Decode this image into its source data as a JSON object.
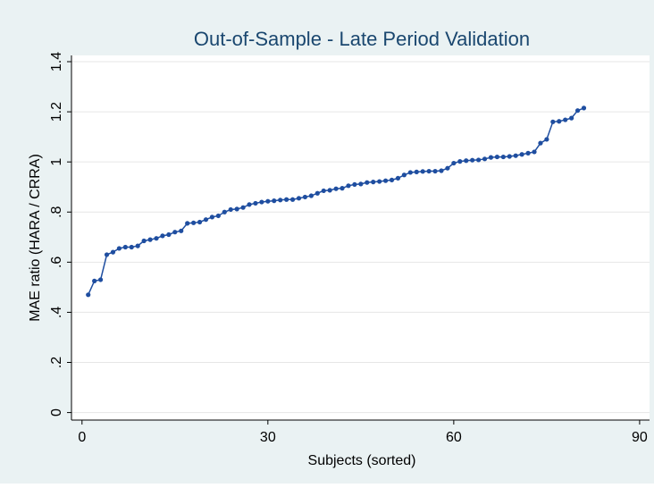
{
  "chart_data": {
    "type": "line",
    "title": "Out-of-Sample - Late Period Validation",
    "xlabel": "Subjects (sorted)",
    "ylabel": "MAE ratio (HARA / CRRA)",
    "color": "#1f4ea0",
    "grid": true,
    "xlim": [
      -1.7,
      91.6
    ],
    "xticks": [
      0,
      30,
      60,
      90
    ],
    "ylim": [
      -0.03,
      1.425
    ],
    "yticks": [
      0,
      {
        "value": 0.2,
        "label": ".2"
      },
      {
        "value": 0.4,
        "label": ".4"
      },
      {
        "value": 0.6,
        "label": ".6"
      },
      {
        "value": 0.8,
        "label": ".8"
      },
      1,
      1.2,
      1.4
    ],
    "x": [
      1,
      2,
      3,
      4,
      5,
      6,
      7,
      8,
      9,
      10,
      11,
      12,
      13,
      14,
      15,
      16,
      17,
      18,
      19,
      20,
      21,
      22,
      23,
      24,
      25,
      26,
      27,
      28,
      29,
      30,
      31,
      32,
      33,
      34,
      35,
      36,
      37,
      38,
      39,
      40,
      41,
      42,
      43,
      44,
      45,
      46,
      47,
      48,
      49,
      50,
      51,
      52,
      53,
      54,
      55,
      56,
      57,
      58,
      59,
      60,
      61,
      62,
      63,
      64,
      65,
      66,
      67,
      68,
      69,
      70,
      71,
      72,
      73,
      74,
      75,
      76,
      77,
      78,
      79,
      80,
      81
    ],
    "values": [
      0.47,
      0.525,
      0.53,
      0.63,
      0.64,
      0.655,
      0.66,
      0.66,
      0.665,
      0.685,
      0.69,
      0.695,
      0.705,
      0.71,
      0.72,
      0.725,
      0.755,
      0.757,
      0.76,
      0.77,
      0.78,
      0.785,
      0.8,
      0.81,
      0.812,
      0.818,
      0.83,
      0.835,
      0.84,
      0.843,
      0.845,
      0.848,
      0.85,
      0.85,
      0.855,
      0.86,
      0.865,
      0.875,
      0.885,
      0.887,
      0.893,
      0.895,
      0.905,
      0.91,
      0.912,
      0.918,
      0.92,
      0.922,
      0.925,
      0.928,
      0.935,
      0.948,
      0.958,
      0.96,
      0.962,
      0.963,
      0.963,
      0.965,
      0.975,
      0.995,
      1.002,
      1.005,
      1.007,
      1.008,
      1.012,
      1.018,
      1.02,
      1.02,
      1.022,
      1.025,
      1.03,
      1.035,
      1.04,
      1.075,
      1.09,
      1.16,
      1.162,
      1.168,
      1.175,
      1.205,
      1.215
    ]
  }
}
